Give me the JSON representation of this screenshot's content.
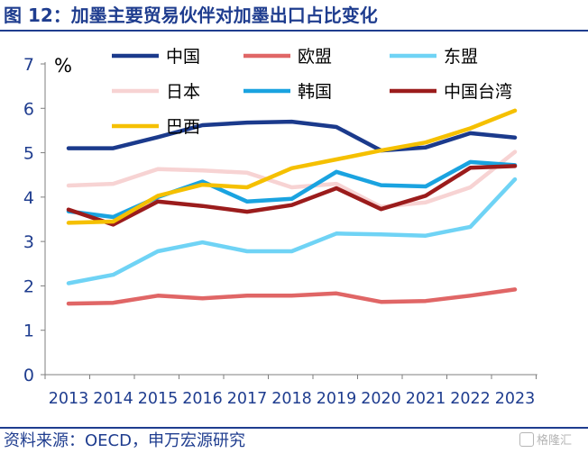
{
  "header": {
    "title": "图 12：加墨主要贸易伙伴对加墨出口占比变化"
  },
  "footer": {
    "source": "资料来源：OECD，申万宏源研究",
    "watermark": "格隆汇"
  },
  "chart_data": {
    "type": "line",
    "title": "",
    "xlabel": "",
    "ylabel": "%",
    "ylim": [
      0,
      7
    ],
    "yticks": [
      0,
      1,
      2,
      3,
      4,
      5,
      6,
      7
    ],
    "grid": false,
    "legend_position": "top",
    "x": [
      "2013",
      "2014",
      "2015",
      "2016",
      "2017",
      "2018",
      "2019",
      "2020",
      "2021",
      "2022",
      "2023"
    ],
    "series": [
      {
        "name": "中国",
        "color": "#1b3a8c",
        "values": [
          5.1,
          5.1,
          5.35,
          5.62,
          5.68,
          5.7,
          5.58,
          5.05,
          5.12,
          5.44,
          5.34
        ]
      },
      {
        "name": "欧盟",
        "color": "#e06666",
        "values": [
          1.6,
          1.62,
          1.78,
          1.72,
          1.78,
          1.78,
          1.83,
          1.64,
          1.66,
          1.78,
          1.92
        ]
      },
      {
        "name": "东盟",
        "color": "#6fd3f5",
        "values": [
          2.06,
          2.25,
          2.78,
          2.98,
          2.78,
          2.78,
          3.18,
          3.16,
          3.13,
          3.33,
          4.4
        ]
      },
      {
        "name": "日本",
        "color": "#f7d3d3",
        "values": [
          4.26,
          4.3,
          4.63,
          4.6,
          4.55,
          4.22,
          4.3,
          3.78,
          3.88,
          4.22,
          5.02
        ]
      },
      {
        "name": "韩国",
        "color": "#1aa3e0",
        "values": [
          3.68,
          3.55,
          4.0,
          4.35,
          3.9,
          3.96,
          4.57,
          4.27,
          4.24,
          4.79,
          4.72
        ]
      },
      {
        "name": "中国台湾",
        "color": "#9b1c1c",
        "values": [
          3.72,
          3.38,
          3.9,
          3.8,
          3.67,
          3.82,
          4.2,
          3.73,
          4.03,
          4.66,
          4.7
        ]
      },
      {
        "name": "巴西",
        "color": "#f5c000",
        "values": [
          3.42,
          3.45,
          4.03,
          4.28,
          4.22,
          4.65,
          4.85,
          5.05,
          5.23,
          5.55,
          5.95
        ]
      }
    ]
  }
}
